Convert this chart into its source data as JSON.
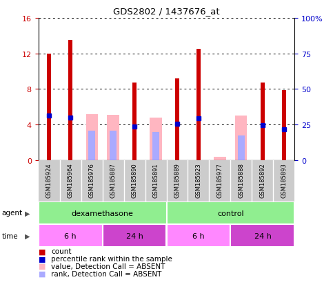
{
  "title": "GDS2802 / 1437676_at",
  "samples": [
    "GSM185924",
    "GSM185964",
    "GSM185976",
    "GSM185887",
    "GSM185890",
    "GSM185891",
    "GSM185889",
    "GSM185923",
    "GSM185977",
    "GSM185888",
    "GSM185892",
    "GSM185893"
  ],
  "count_values": [
    12.0,
    13.5,
    0,
    0,
    8.7,
    0,
    9.2,
    12.5,
    0,
    0,
    8.7,
    7.9
  ],
  "rank_values": [
    5.0,
    4.8,
    0,
    0,
    3.8,
    0,
    4.1,
    4.7,
    0,
    0,
    3.9,
    3.5
  ],
  "absent_value_bars": [
    0,
    0,
    5.2,
    5.1,
    0,
    4.8,
    0,
    0,
    0.4,
    5.0,
    0,
    0
  ],
  "absent_rank_bars": [
    0,
    0,
    3.3,
    3.3,
    0,
    3.2,
    0,
    0,
    0,
    2.8,
    0,
    0
  ],
  "ylim_left": [
    0,
    16
  ],
  "ylim_right": [
    0,
    100
  ],
  "yticks_left": [
    0,
    4,
    8,
    12,
    16
  ],
  "yticks_right": [
    0,
    25,
    50,
    75,
    100
  ],
  "ytick_labels_left": [
    "0",
    "4",
    "8",
    "12",
    "16"
  ],
  "ytick_labels_right": [
    "0",
    "25",
    "50",
    "75",
    "100%"
  ],
  "count_color": "#cc0000",
  "rank_color": "#0000cc",
  "absent_value_color": "#ffb6c1",
  "absent_rank_color": "#aaaaff",
  "agent_groups": [
    {
      "label": "dexamethasone",
      "start": 0,
      "end": 6,
      "color": "#90ee90"
    },
    {
      "label": "control",
      "start": 6,
      "end": 12,
      "color": "#90ee90"
    }
  ],
  "time_groups": [
    {
      "label": "6 h",
      "start": 0,
      "end": 3,
      "color": "#ff88ff"
    },
    {
      "label": "24 h",
      "start": 3,
      "end": 6,
      "color": "#cc44cc"
    },
    {
      "label": "6 h",
      "start": 6,
      "end": 9,
      "color": "#ff88ff"
    },
    {
      "label": "24 h",
      "start": 9,
      "end": 12,
      "color": "#cc44cc"
    }
  ],
  "background_color": "#ffffff",
  "left_tick_color": "#cc0000",
  "right_tick_color": "#0000cc",
  "legend_items": [
    {
      "color": "#cc0000",
      "label": "count"
    },
    {
      "color": "#0000cc",
      "label": "percentile rank within the sample"
    },
    {
      "color": "#ffb6c1",
      "label": "value, Detection Call = ABSENT"
    },
    {
      "color": "#aaaaff",
      "label": "rank, Detection Call = ABSENT"
    }
  ]
}
